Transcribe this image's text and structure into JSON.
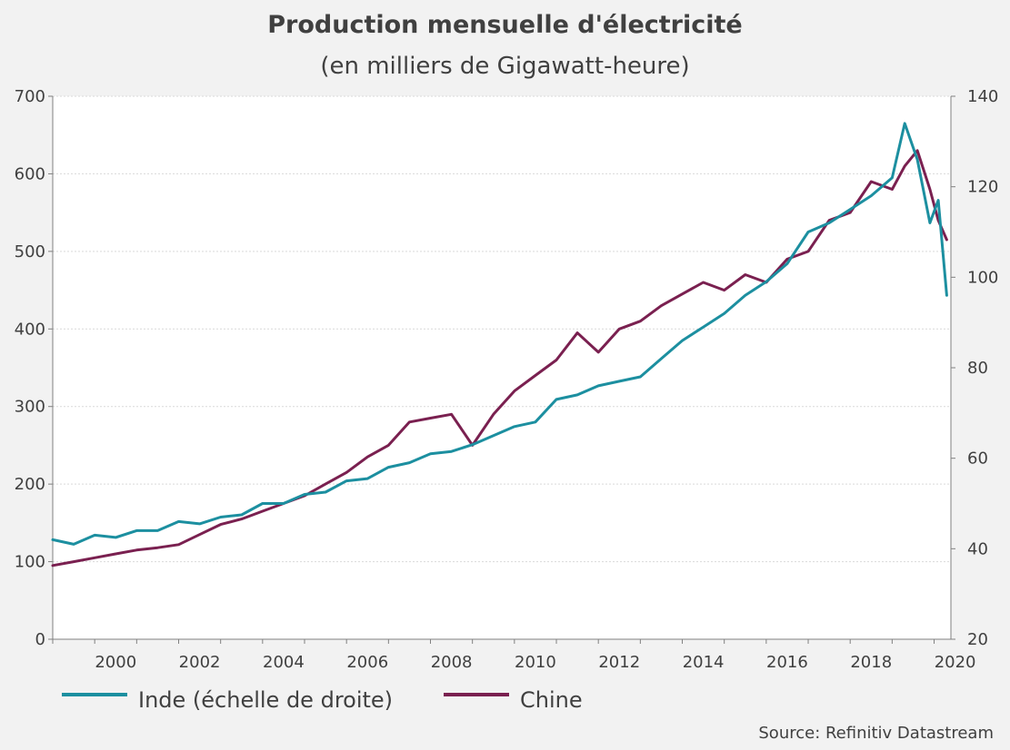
{
  "chart_data": {
    "type": "line",
    "title": "Production mensuelle d'électricité",
    "subtitle": "(en milliers de Gigawatt-heure)",
    "source": "Source: Refinitiv Datastream",
    "grid": true,
    "legend_placement": "bottom-left",
    "x_range": [
      1999.0,
      2020.4
    ],
    "x_ticks": [
      "2000",
      "2002",
      "2004",
      "2006",
      "2008",
      "2010",
      "2012",
      "2014",
      "2016",
      "2018",
      "2020"
    ],
    "y_left": {
      "range": [
        0,
        700
      ],
      "ticks": [
        "0",
        "100",
        "200",
        "300",
        "400",
        "500",
        "600",
        "700"
      ]
    },
    "y_right": {
      "range": [
        20,
        140
      ],
      "ticks": [
        "20",
        "40",
        "60",
        "80",
        "100",
        "120",
        "140"
      ]
    },
    "series": [
      {
        "name": "Inde (échelle de droite)",
        "axis": "right",
        "color": "#1c8fa0",
        "x": [
          1999.0,
          1999.5,
          2000.0,
          2000.5,
          2001.0,
          2001.5,
          2002.0,
          2002.5,
          2003.0,
          2003.5,
          2004.0,
          2004.5,
          2005.0,
          2005.5,
          2006.0,
          2006.5,
          2007.0,
          2007.5,
          2008.0,
          2008.5,
          2009.0,
          2009.5,
          2010.0,
          2010.5,
          2011.0,
          2011.5,
          2012.0,
          2012.5,
          2013.0,
          2013.5,
          2014.0,
          2014.5,
          2015.0,
          2015.5,
          2016.0,
          2016.5,
          2017.0,
          2017.5,
          2018.0,
          2018.5,
          2019.0,
          2019.3,
          2019.6,
          2019.9,
          2020.1,
          2020.3
        ],
        "values": [
          42,
          41,
          43,
          42.5,
          44,
          44,
          46,
          45.5,
          47,
          47.5,
          50,
          50,
          52,
          52.5,
          55,
          55.5,
          58,
          59,
          61,
          61.5,
          63,
          65,
          67,
          68,
          73,
          74,
          76,
          77,
          78,
          82,
          86,
          89,
          92,
          96,
          99,
          103,
          110,
          112,
          115,
          118,
          122,
          134,
          126,
          112,
          117,
          96
        ]
      },
      {
        "name": "Chine",
        "axis": "left",
        "color": "#7a2050",
        "x": [
          1999.0,
          1999.5,
          2000.0,
          2000.5,
          2001.0,
          2001.5,
          2002.0,
          2002.5,
          2003.0,
          2003.5,
          2004.0,
          2004.5,
          2005.0,
          2005.5,
          2006.0,
          2006.5,
          2007.0,
          2007.5,
          2008.0,
          2008.5,
          2009.0,
          2009.5,
          2010.0,
          2010.5,
          2011.0,
          2011.5,
          2012.0,
          2012.5,
          2013.0,
          2013.5,
          2014.0,
          2014.5,
          2015.0,
          2015.5,
          2016.0,
          2016.5,
          2017.0,
          2017.5,
          2018.0,
          2018.5,
          2019.0,
          2019.3,
          2019.6,
          2019.9,
          2020.1,
          2020.3
        ],
        "values": [
          95,
          100,
          105,
          110,
          115,
          118,
          122,
          135,
          148,
          155,
          165,
          175,
          185,
          200,
          215,
          235,
          250,
          280,
          285,
          290,
          250,
          290,
          320,
          340,
          360,
          395,
          370,
          400,
          410,
          430,
          445,
          460,
          450,
          470,
          460,
          490,
          500,
          540,
          550,
          590,
          580,
          610,
          630,
          580,
          540,
          515
        ]
      }
    ]
  }
}
